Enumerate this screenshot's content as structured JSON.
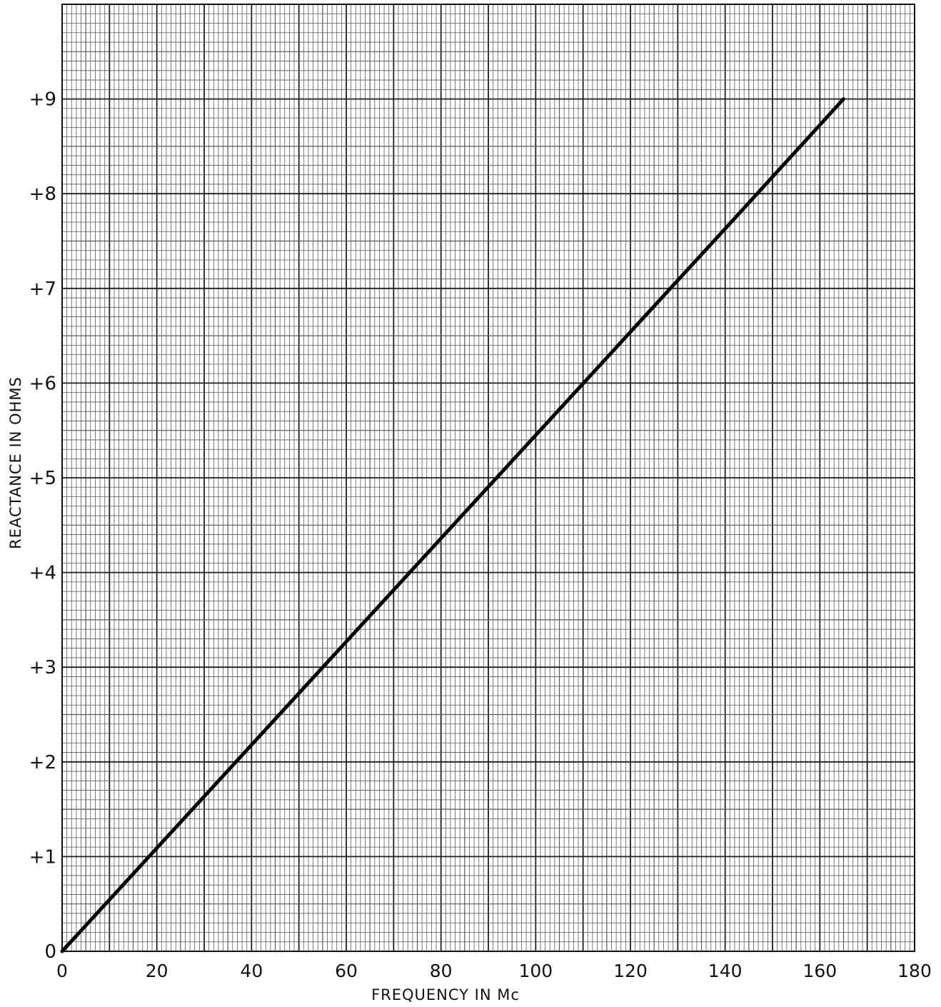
{
  "chart_data": {
    "type": "line",
    "title": "",
    "xlabel": "FREQUENCY IN Mc",
    "ylabel": "REACTANCE IN OHMS",
    "xlim": [
      0,
      180
    ],
    "ylim": [
      0,
      10
    ],
    "x_ticks": [
      "0",
      "20",
      "40",
      "60",
      "80",
      "100",
      "120",
      "140",
      "160",
      "180"
    ],
    "y_ticks": [
      "0",
      "+1",
      "+2",
      "+3",
      "+4",
      "+5",
      "+6",
      "+7",
      "+8",
      "+9"
    ],
    "grid": true,
    "legend": "none",
    "series": [
      {
        "x": [
          0,
          20,
          40,
          60,
          80,
          100,
          120,
          140,
          165
        ],
        "y": [
          0,
          1.09,
          2.18,
          3.27,
          4.36,
          5.45,
          6.54,
          7.63,
          9.0
        ]
      }
    ],
    "colors": {
      "line": "#000000",
      "grid_minor": "#5a5a5a",
      "grid_major": "#1e1e1e",
      "background": "#ffffff"
    }
  }
}
